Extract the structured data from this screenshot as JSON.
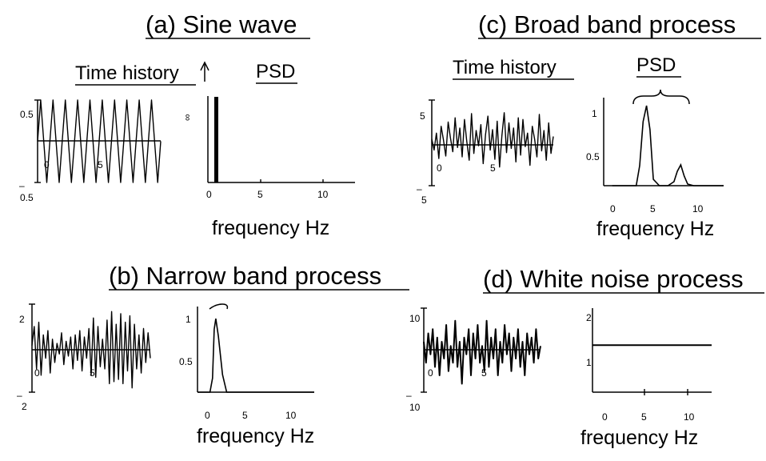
{
  "chart_data": [
    {
      "id": "a-time",
      "type": "line",
      "panel_title": "(a) Sine wave",
      "header": "Time history",
      "xticks": [
        "0",
        "5"
      ],
      "yticks": [
        "0.5",
        "–",
        "0.5"
      ],
      "description_values": {
        "amplitude": 0.5,
        "frequency_hz": 1,
        "duration_s": 10
      },
      "x": [
        0,
        0.25,
        0.5,
        0.75,
        1,
        1.25,
        1.5,
        1.75,
        2,
        2.25,
        2.5,
        2.75,
        3,
        3.25,
        3.5,
        3.75,
        4,
        4.25,
        4.5,
        4.75,
        5,
        5.25,
        5.5,
        5.75,
        6,
        6.25,
        6.5,
        6.75,
        7,
        7.25,
        7.5,
        7.75,
        8,
        8.25,
        8.5,
        8.75,
        9,
        9.25,
        9.5,
        9.75,
        10
      ],
      "y": [
        0,
        0.5,
        0,
        -0.5,
        0,
        0.5,
        0,
        -0.5,
        0,
        0.5,
        0,
        -0.5,
        0,
        0.5,
        0,
        -0.5,
        0,
        0.5,
        0,
        -0.5,
        0,
        0.5,
        0,
        -0.5,
        0,
        0.5,
        0,
        -0.5,
        0,
        0.5,
        0,
        -0.5,
        0,
        0.5,
        0,
        -0.5,
        0,
        0.5,
        0,
        -0.5,
        0
      ],
      "ylim": [
        -0.5,
        0.5
      ]
    },
    {
      "id": "a-psd",
      "type": "bar",
      "header": "PSD",
      "xlabel": "frequency Hz",
      "xticks": [
        "0",
        "5",
        "10"
      ],
      "yticks": [
        "∞"
      ],
      "x": [
        1
      ],
      "values": [
        1
      ],
      "ylim": [
        0,
        1
      ],
      "xlim": [
        -1,
        13
      ]
    },
    {
      "id": "b-time",
      "type": "line",
      "panel_title": "(b) Narrow band process",
      "xticks": [
        "0",
        "5"
      ],
      "yticks": [
        "2",
        "–",
        "2"
      ],
      "x": [
        0,
        0.25,
        0.5,
        0.75,
        1,
        1.25,
        1.5,
        1.75,
        2,
        2.25,
        2.5,
        2.75,
        3,
        3.25,
        3.5,
        3.75,
        4,
        4.25,
        4.5,
        4.75,
        5,
        5.25,
        5.5,
        5.75,
        6,
        6.25,
        6.5,
        6.75,
        7,
        7.25,
        7.5,
        7.75,
        8,
        8.25,
        8.5,
        8.75,
        9,
        9.25,
        9.5,
        9.75,
        10,
        10.25,
        10.5,
        10.75,
        11,
        11.25,
        11.5,
        11.75,
        12,
        12.25,
        12.5,
        12.75,
        13
      ],
      "y": [
        0.2,
        1.1,
        -0.9,
        1.3,
        -1.2,
        0.7,
        -0.4,
        0.9,
        -1.1,
        0.5,
        -0.6,
        0.3,
        -0.2,
        0.8,
        -0.7,
        0.4,
        -0.3,
        0.6,
        -0.9,
        0.7,
        -0.5,
        0.9,
        -1.0,
        0.6,
        -0.4,
        1.0,
        -1.2,
        1.5,
        -1.3,
        1.1,
        -0.8,
        0.5,
        -0.9,
        1.4,
        -1.6,
        1.8,
        -1.5,
        1.2,
        -1.4,
        1.7,
        -1.6,
        1.3,
        -1.0,
        1.6,
        -1.8,
        1.2,
        -0.9,
        0.7,
        -1.1,
        1.0,
        -0.6,
        0.8,
        -0.4
      ],
      "ylim": [
        -2,
        2
      ]
    },
    {
      "id": "b-psd",
      "type": "area",
      "xlabel": "frequency Hz",
      "xticks": [
        "0",
        "5",
        "10"
      ],
      "yticks": [
        "1",
        "0.5"
      ],
      "x": [
        -1,
        0,
        0.5,
        0.8,
        1.0,
        1.2,
        1.5,
        2.0,
        2.5,
        4,
        8,
        12,
        13
      ],
      "y": [
        0,
        0,
        0,
        0.2,
        0.9,
        1.05,
        0.8,
        0.25,
        0,
        0,
        0,
        0,
        0
      ],
      "xlim": [
        -1,
        13
      ],
      "ylim": [
        0,
        1.2
      ]
    },
    {
      "id": "c-time",
      "type": "line",
      "panel_title": "(c) Broad band process",
      "header": "Time history",
      "xticks": [
        "0",
        "5"
      ],
      "yticks": [
        "5",
        "–",
        "5"
      ],
      "x": [
        0,
        0.25,
        0.5,
        0.75,
        1,
        1.25,
        1.5,
        1.75,
        2,
        2.25,
        2.5,
        2.75,
        3,
        3.25,
        3.5,
        3.75,
        4,
        4.25,
        4.5,
        4.75,
        5,
        5.25,
        5.5,
        5.75,
        6,
        6.25,
        6.5,
        6.75,
        7,
        7.25,
        7.5,
        7.75,
        8,
        8.25,
        8.5,
        8.75,
        9,
        9.25,
        9.5,
        9.75,
        10,
        10.25,
        10.5,
        10.75,
        11,
        11.25,
        11.5,
        11.75,
        12,
        12.25,
        12.5,
        12.75,
        13
      ],
      "y": [
        0.5,
        -0.8,
        1.2,
        -1.8,
        2.0,
        0.4,
        -1.5,
        2.5,
        0.6,
        -1.0,
        3.0,
        -0.5,
        1.8,
        -1.6,
        2.8,
        0.2,
        -2.0,
        3.5,
        -1.2,
        1.5,
        -0.3,
        2.2,
        -2.4,
        1.0,
        3.2,
        -0.8,
        1.6,
        -1.9,
        2.6,
        -2.8,
        0.9,
        3.6,
        -1.1,
        2.4,
        -0.6,
        1.8,
        -2.2,
        3.0,
        -1.4,
        2.8,
        -0.4,
        1.2,
        -2.6,
        2.0,
        0.5,
        -1.6,
        3.4,
        -0.9,
        1.5,
        -2.0,
        2.4,
        -1.2,
        0.8
      ],
      "ylim": [
        -5,
        5
      ]
    },
    {
      "id": "c-psd",
      "type": "area",
      "header": "PSD",
      "xlabel": "frequency Hz",
      "xticks": [
        "0",
        "5",
        "10"
      ],
      "yticks": [
        "1",
        "0.5"
      ],
      "x": [
        0,
        2,
        2.8,
        3.2,
        3.6,
        4.0,
        4.4,
        4.8,
        5.5,
        6.5,
        7.2,
        7.6,
        8.0,
        8.4,
        8.8,
        9.5,
        12,
        13
      ],
      "y": [
        0,
        0,
        0,
        0.25,
        0.8,
        1.0,
        0.7,
        0.08,
        0,
        0,
        0.05,
        0.18,
        0.26,
        0.12,
        0.02,
        0,
        0,
        0
      ],
      "xlim": [
        -1,
        13
      ],
      "ylim": [
        0,
        1.2
      ]
    },
    {
      "id": "d-time",
      "type": "line",
      "panel_title": "(d) White noise process",
      "xticks": [
        "0",
        "5"
      ],
      "yticks": [
        "10",
        "–",
        "10"
      ],
      "x": [
        0,
        0.25,
        0.5,
        0.75,
        1,
        1.25,
        1.5,
        1.75,
        2,
        2.25,
        2.5,
        2.75,
        3,
        3.25,
        3.5,
        3.75,
        4,
        4.25,
        4.5,
        4.75,
        5,
        5.25,
        5.5,
        5.75,
        6,
        6.25,
        6.5,
        6.75,
        7,
        7.25,
        7.5,
        7.75,
        8,
        8.25,
        8.5,
        8.75,
        9,
        9.25,
        9.5,
        9.75,
        10,
        10.25,
        10.5,
        10.75,
        11,
        11.25,
        11.5,
        11.75,
        12,
        12.25,
        12.5,
        12.75,
        13
      ],
      "y": [
        2,
        -3,
        4,
        -1,
        5,
        -4,
        3,
        -6,
        2,
        -2,
        6,
        -5,
        1,
        -3,
        7,
        -4,
        2,
        -8,
        3,
        -1,
        5,
        -6,
        4,
        -2,
        6,
        -3,
        1,
        -5,
        7,
        -4,
        3,
        -2,
        5,
        -6,
        2,
        -3,
        6,
        -1,
        4,
        -5,
        3,
        -2,
        5,
        -4,
        2,
        -6,
        4,
        -1,
        3,
        -3,
        5,
        -2,
        1
      ],
      "ylim": [
        -10,
        10
      ]
    },
    {
      "id": "d-psd",
      "type": "line",
      "xlabel": "frequency Hz",
      "xticks": [
        "0",
        "5",
        "10"
      ],
      "yticks": [
        "2",
        "1"
      ],
      "x": [
        -1,
        13
      ],
      "y": [
        1.4,
        1.4
      ],
      "xlim": [
        -1,
        13
      ],
      "ylim": [
        0,
        2.5
      ]
    }
  ]
}
